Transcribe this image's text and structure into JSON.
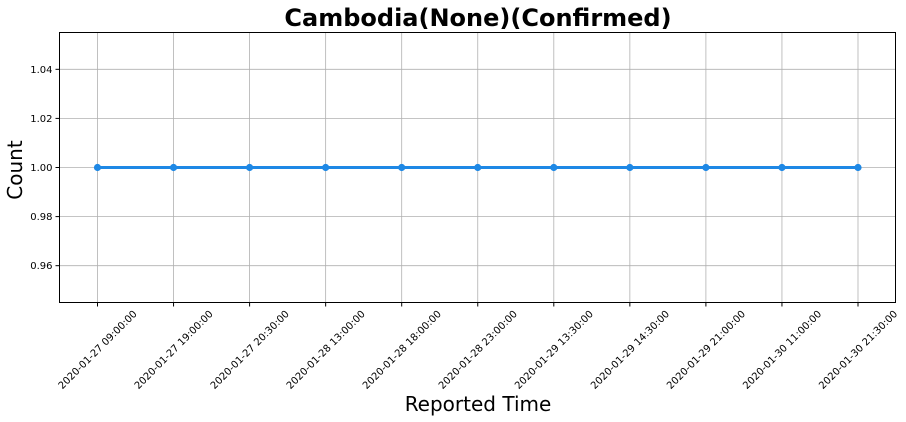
{
  "chart_data": {
    "type": "line",
    "title": "Cambodia(None)(Confirmed)",
    "xlabel": "Reported Time",
    "ylabel": "Count",
    "categories": [
      "2020-01-27 09:00:00",
      "2020-01-27 19:00:00",
      "2020-01-27 20:30:00",
      "2020-01-28 13:00:00",
      "2020-01-28 18:00:00",
      "2020-01-28 23:00:00",
      "2020-01-29 13:30:00",
      "2020-01-29 14:30:00",
      "2020-01-29 21:00:00",
      "2020-01-30 11:00:00",
      "2020-01-30 21:30:00"
    ],
    "series": [
      {
        "values": [
          1,
          1,
          1,
          1,
          1,
          1,
          1,
          1,
          1,
          1,
          1
        ]
      }
    ],
    "ylim": [
      0.945,
      1.055
    ],
    "yticks": [
      "0.96",
      "0.98",
      "1.00",
      "1.02",
      "1.04"
    ],
    "grid": true,
    "line_color": "#1e88e5"
  }
}
